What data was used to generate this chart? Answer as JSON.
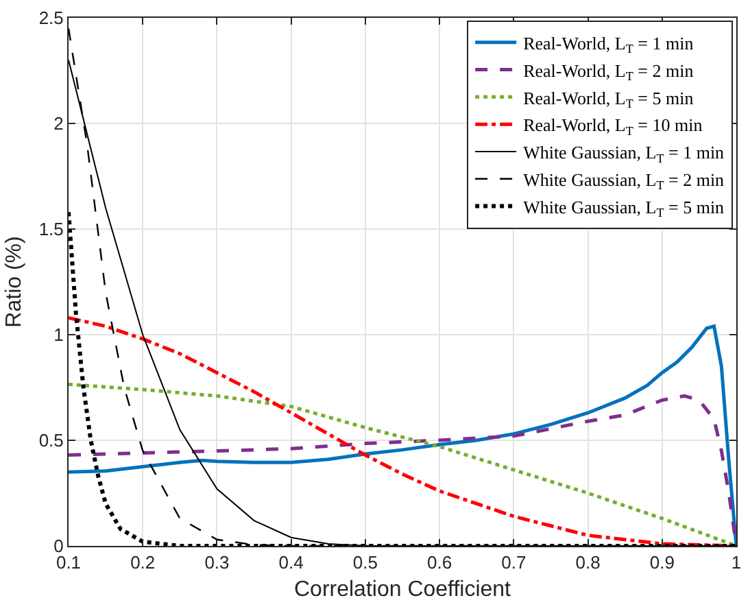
{
  "chart_data": {
    "type": "line",
    "xlabel": "Correlation Coefficient",
    "ylabel": "Ratio (%)",
    "xlim": [
      0.1,
      1
    ],
    "xticks": [
      0.1,
      0.2,
      0.3,
      0.4,
      0.5,
      0.6,
      0.7,
      0.8,
      0.9,
      1
    ],
    "ylim": [
      0,
      2.5
    ],
    "yticks": [
      0,
      0.5,
      1,
      1.5,
      2,
      2.5
    ],
    "grid": true,
    "legend": "top right",
    "marker": "none",
    "series": [
      {
        "name": "Real-World, L$_{T}$ = 1 min",
        "color": "#0072bd",
        "line_style": "solid",
        "x": [
          0.1,
          0.15,
          0.2,
          0.25,
          0.28,
          0.3,
          0.35,
          0.4,
          0.45,
          0.5,
          0.55,
          0.6,
          0.65,
          0.7,
          0.75,
          0.8,
          0.85,
          0.88,
          0.9,
          0.92,
          0.94,
          0.96,
          0.97,
          0.98,
          0.99,
          1
        ],
        "values": [
          0.35,
          0.355,
          0.375,
          0.395,
          0.405,
          0.4,
          0.395,
          0.395,
          0.41,
          0.435,
          0.455,
          0.48,
          0.5,
          0.53,
          0.575,
          0.63,
          0.7,
          0.76,
          0.82,
          0.87,
          0.94,
          1.03,
          1.04,
          0.85,
          0.4,
          0
        ]
      },
      {
        "name": "Real-World, L$_{T}$ = 2 min",
        "color": "#7e2f8e",
        "line_style": "dashed",
        "x": [
          0.1,
          0.2,
          0.3,
          0.4,
          0.5,
          0.6,
          0.7,
          0.8,
          0.85,
          0.9,
          0.93,
          0.95,
          0.97,
          0.98,
          0.99,
          1
        ],
        "values": [
          0.43,
          0.44,
          0.45,
          0.46,
          0.485,
          0.5,
          0.52,
          0.59,
          0.62,
          0.69,
          0.71,
          0.69,
          0.6,
          0.45,
          0.25,
          0
        ]
      },
      {
        "name": "Real-World, L$_{T}$ = 5 min",
        "color": "#77ac30",
        "line_style": "dotted",
        "x": [
          0.1,
          0.2,
          0.3,
          0.4,
          0.5,
          0.6,
          0.7,
          0.8,
          0.9,
          1
        ],
        "values": [
          0.765,
          0.74,
          0.71,
          0.66,
          0.56,
          0.47,
          0.36,
          0.25,
          0.13,
          0
        ]
      },
      {
        "name": "Real-World, L$_{T}$ = 10 min",
        "color": "#ff0000",
        "line_style": "dashdot",
        "x": [
          0.1,
          0.15,
          0.2,
          0.25,
          0.3,
          0.35,
          0.4,
          0.45,
          0.5,
          0.55,
          0.6,
          0.65,
          0.7,
          0.8,
          0.9,
          1
        ],
        "values": [
          1.08,
          1.04,
          0.98,
          0.91,
          0.82,
          0.73,
          0.63,
          0.53,
          0.43,
          0.34,
          0.26,
          0.2,
          0.14,
          0.05,
          0.01,
          0
        ]
      },
      {
        "name": "White Gaussian, L$_{T}$ = 1 min",
        "color": "#000000",
        "line_style": "solid",
        "x": [
          0.1,
          0.15,
          0.2,
          0.25,
          0.3,
          0.35,
          0.4,
          0.45,
          0.5,
          1
        ],
        "values": [
          2.3,
          1.6,
          1.0,
          0.55,
          0.27,
          0.12,
          0.04,
          0.01,
          0,
          0
        ]
      },
      {
        "name": "White Gaussian, L$_{T}$ = 2 min",
        "color": "#000000",
        "line_style": "dashed",
        "x": [
          0.1,
          0.125,
          0.15,
          0.175,
          0.2,
          0.25,
          0.3,
          0.35,
          0.4,
          1
        ],
        "values": [
          2.45,
          1.9,
          1.2,
          0.75,
          0.45,
          0.13,
          0.03,
          0.005,
          0,
          0
        ]
      },
      {
        "name": "White Gaussian, L$_{T}$ = 5 min",
        "color": "#000000",
        "line_style": "dotted",
        "x": [
          0.1,
          0.11,
          0.12,
          0.13,
          0.14,
          0.15,
          0.17,
          0.2,
          0.25,
          1
        ],
        "values": [
          1.58,
          1.1,
          0.75,
          0.5,
          0.33,
          0.2,
          0.08,
          0.02,
          0,
          0
        ]
      }
    ]
  }
}
